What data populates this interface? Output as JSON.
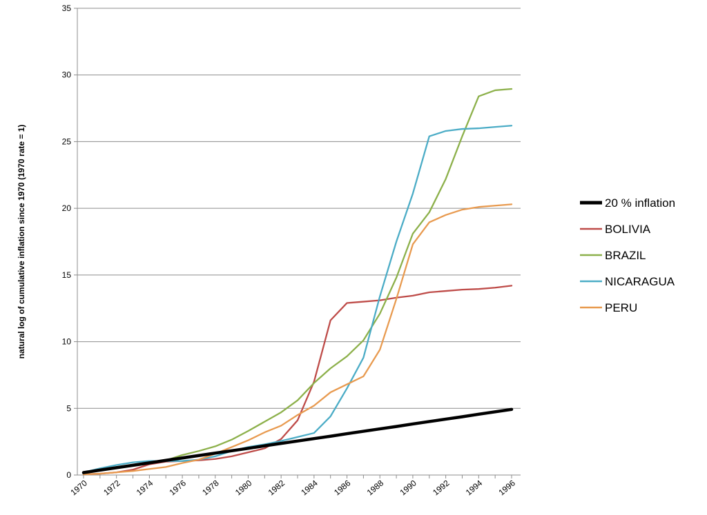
{
  "chart_data": {
    "type": "line",
    "title": "",
    "xlabel": "",
    "ylabel": "natural log of cumulative inflation since 1970 (1970 rate = 1)",
    "xlim": [
      1970,
      1996
    ],
    "ylim": [
      0,
      35
    ],
    "y_ticks": [
      "0",
      "5",
      "10",
      "15",
      "20",
      "25",
      "30",
      "35"
    ],
    "x_ticks": [
      "1970",
      "1972",
      "1974",
      "1976",
      "1978",
      "1980",
      "1982",
      "1984",
      "1986",
      "1988",
      "1990",
      "1992",
      "1994",
      "1996"
    ],
    "grid": "horizontal",
    "legend_position": "right",
    "x": [
      1970,
      1971,
      1972,
      1973,
      1974,
      1975,
      1976,
      1977,
      1978,
      1979,
      1980,
      1981,
      1982,
      1983,
      1984,
      1985,
      1986,
      1987,
      1988,
      1989,
      1990,
      1991,
      1992,
      1993,
      1994,
      1995,
      1996
    ],
    "series": [
      {
        "name": "20 % inflation",
        "color": "#000000",
        "values": [
          0.18,
          0.37,
          0.55,
          0.73,
          0.91,
          1.1,
          1.28,
          1.46,
          1.64,
          1.82,
          2.0,
          2.19,
          2.37,
          2.55,
          2.73,
          2.91,
          3.1,
          3.28,
          3.46,
          3.64,
          3.83,
          4.01,
          4.19,
          4.37,
          4.56,
          4.74,
          4.92
        ]
      },
      {
        "name": "BOLIVIA",
        "color": "#BE4B48",
        "values": [
          0.05,
          0.1,
          0.2,
          0.4,
          0.8,
          1.0,
          1.05,
          1.1,
          1.2,
          1.4,
          1.7,
          2.0,
          2.7,
          4.1,
          7.0,
          11.6,
          12.9,
          13.0,
          13.1,
          13.3,
          13.45,
          13.7,
          13.8,
          13.9,
          13.95,
          14.05,
          14.2
        ]
      },
      {
        "name": "BRAZIL",
        "color": "#8CB04A",
        "values": [
          0.2,
          0.4,
          0.6,
          0.75,
          0.9,
          1.1,
          1.5,
          1.8,
          2.15,
          2.65,
          3.3,
          4.0,
          4.7,
          5.6,
          6.9,
          8.0,
          8.9,
          10.1,
          12.1,
          14.8,
          18.1,
          19.7,
          22.2,
          25.4,
          28.4,
          28.85,
          28.95
        ]
      },
      {
        "name": "NICARAGUA",
        "color": "#4BACC6",
        "values": [
          0.2,
          0.5,
          0.75,
          0.95,
          1.05,
          1.05,
          1.05,
          1.15,
          1.4,
          1.8,
          2.1,
          2.3,
          2.55,
          2.85,
          3.15,
          4.4,
          6.5,
          8.8,
          13.4,
          17.5,
          21.1,
          25.4,
          25.8,
          25.95,
          26.0,
          26.1,
          26.2
        ]
      },
      {
        "name": "PERU",
        "color": "#E89A4F",
        "values": [
          0.05,
          0.1,
          0.2,
          0.3,
          0.45,
          0.6,
          0.9,
          1.15,
          1.6,
          2.1,
          2.6,
          3.2,
          3.7,
          4.5,
          5.2,
          6.2,
          6.8,
          7.4,
          9.4,
          13.2,
          17.3,
          18.95,
          19.5,
          19.9,
          20.1,
          20.2,
          20.3
        ]
      }
    ]
  }
}
